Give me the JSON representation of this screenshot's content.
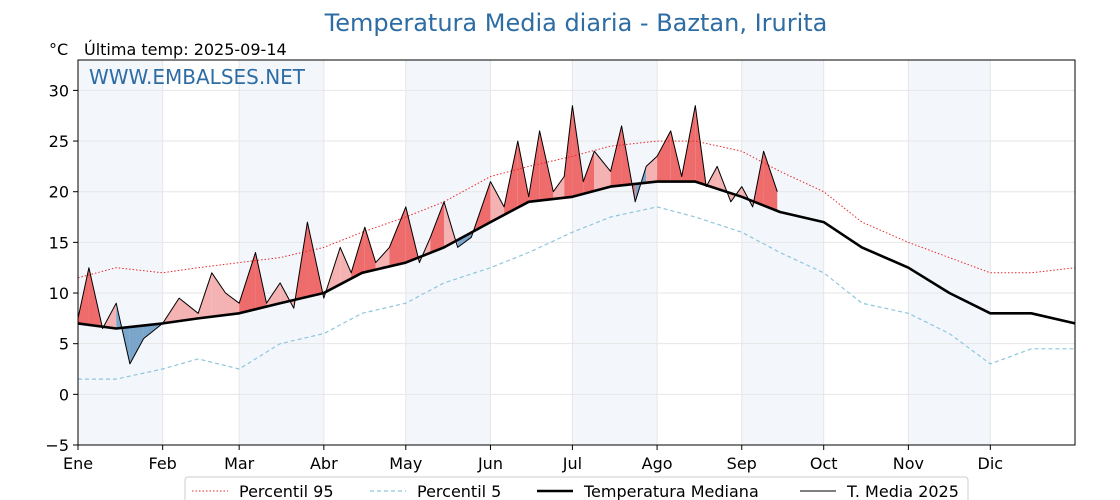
{
  "chart_data": {
    "type": "line",
    "title": "Temperatura Media diaria - Baztan, Irurita",
    "unit_label": "°C",
    "last_temp_label": "Última temp: 2025-09-14",
    "watermark": "WWW.EMBALSES.NET",
    "ylim": [
      -5,
      33
    ],
    "yticks": [
      -5,
      0,
      5,
      10,
      15,
      20,
      25,
      30
    ],
    "xlim": [
      1,
      366
    ],
    "months": [
      {
        "label": "Ene",
        "day": 1
      },
      {
        "label": "Feb",
        "day": 32
      },
      {
        "label": "Mar",
        "day": 60
      },
      {
        "label": "Abr",
        "day": 91
      },
      {
        "label": "May",
        "day": 121
      },
      {
        "label": "Jun",
        "day": 152
      },
      {
        "label": "Jul",
        "day": 182
      },
      {
        "label": "Ago",
        "day": 213
      },
      {
        "label": "Sep",
        "day": 244
      },
      {
        "label": "Oct",
        "day": 274
      },
      {
        "label": "Nov",
        "day": 305
      },
      {
        "label": "Dic",
        "day": 335
      }
    ],
    "grid": true,
    "legend_position": "bottom",
    "colors": {
      "p95": "#e8282b",
      "p5": "#8ec6dd",
      "median": "#000000",
      "current": "#000000",
      "above_fill": "#f4b2b2",
      "above_fill_strong": "#ef6c6c",
      "below_fill": "#7aa6cc",
      "band_shade": "#dce9f5"
    },
    "series": [
      {
        "name": "Percentil 95",
        "key": "p95",
        "style": "dotted",
        "x": [
          1,
          15,
          32,
          45,
          60,
          75,
          91,
          105,
          121,
          135,
          152,
          166,
          182,
          196,
          213,
          227,
          244,
          258,
          274,
          288,
          305,
          320,
          335,
          350,
          366
        ],
        "y": [
          11.5,
          12.5,
          12.0,
          12.5,
          13.0,
          13.5,
          14.5,
          16.0,
          17.5,
          19.0,
          21.5,
          22.5,
          23.5,
          24.5,
          25.0,
          25.0,
          24.0,
          22.0,
          20.0,
          17.0,
          15.0,
          13.5,
          12.0,
          12.0,
          12.5
        ]
      },
      {
        "name": "Percentil 5",
        "key": "p5",
        "style": "dashed",
        "x": [
          1,
          15,
          32,
          45,
          60,
          75,
          91,
          105,
          121,
          135,
          152,
          166,
          182,
          196,
          213,
          227,
          244,
          258,
          274,
          288,
          305,
          320,
          335,
          350,
          366
        ],
        "y": [
          1.5,
          1.5,
          2.5,
          3.5,
          2.5,
          5.0,
          6.0,
          8.0,
          9.0,
          11.0,
          12.5,
          14.0,
          16.0,
          17.5,
          18.5,
          17.5,
          16.0,
          14.0,
          12.0,
          9.0,
          8.0,
          6.0,
          3.0,
          4.5,
          4.5
        ]
      },
      {
        "name": "Temperatura Mediana",
        "key": "median",
        "style": "thick",
        "x": [
          1,
          15,
          32,
          45,
          60,
          75,
          91,
          105,
          121,
          135,
          152,
          166,
          182,
          196,
          213,
          227,
          244,
          258,
          274,
          288,
          305,
          320,
          335,
          350,
          366
        ],
        "y": [
          7.0,
          6.5,
          7.0,
          7.5,
          8.0,
          9.0,
          10.0,
          12.0,
          13.0,
          14.5,
          17.0,
          19.0,
          19.5,
          20.5,
          21.0,
          21.0,
          19.5,
          18.0,
          17.0,
          14.5,
          12.5,
          10.0,
          8.0,
          8.0,
          7.0
        ]
      },
      {
        "name": "T. Media 2025",
        "key": "current",
        "style": "thin",
        "x": [
          1,
          5,
          10,
          15,
          20,
          25,
          32,
          38,
          45,
          50,
          55,
          60,
          66,
          70,
          75,
          80,
          85,
          91,
          97,
          101,
          106,
          110,
          115,
          121,
          126,
          130,
          135,
          140,
          145,
          152,
          157,
          162,
          166,
          170,
          175,
          179,
          182,
          186,
          190,
          196,
          200,
          205,
          209,
          213,
          218,
          222,
          227,
          231,
          235,
          240,
          244,
          248,
          252,
          257
        ],
        "y": [
          7.5,
          12.5,
          6.5,
          9.0,
          3.0,
          5.5,
          7.0,
          9.5,
          8.0,
          12.0,
          10.0,
          9.0,
          14.0,
          9.0,
          11.0,
          8.5,
          17.0,
          9.5,
          14.5,
          12.0,
          16.5,
          13.0,
          14.5,
          18.5,
          13.0,
          15.5,
          19.0,
          14.5,
          15.5,
          21.0,
          18.5,
          25.0,
          19.5,
          26.0,
          20.0,
          21.5,
          28.5,
          21.0,
          24.0,
          22.0,
          26.5,
          19.0,
          22.5,
          23.5,
          26.0,
          21.5,
          28.5,
          20.5,
          22.5,
          19.0,
          20.5,
          18.5,
          24.0,
          20.0
        ]
      }
    ],
    "legend": [
      {
        "label": "Percentil 95",
        "key": "p95"
      },
      {
        "label": "Percentil 5",
        "key": "p5"
      },
      {
        "label": "Temperatura Mediana",
        "key": "median"
      },
      {
        "label": "T. Media 2025",
        "key": "current"
      }
    ]
  }
}
